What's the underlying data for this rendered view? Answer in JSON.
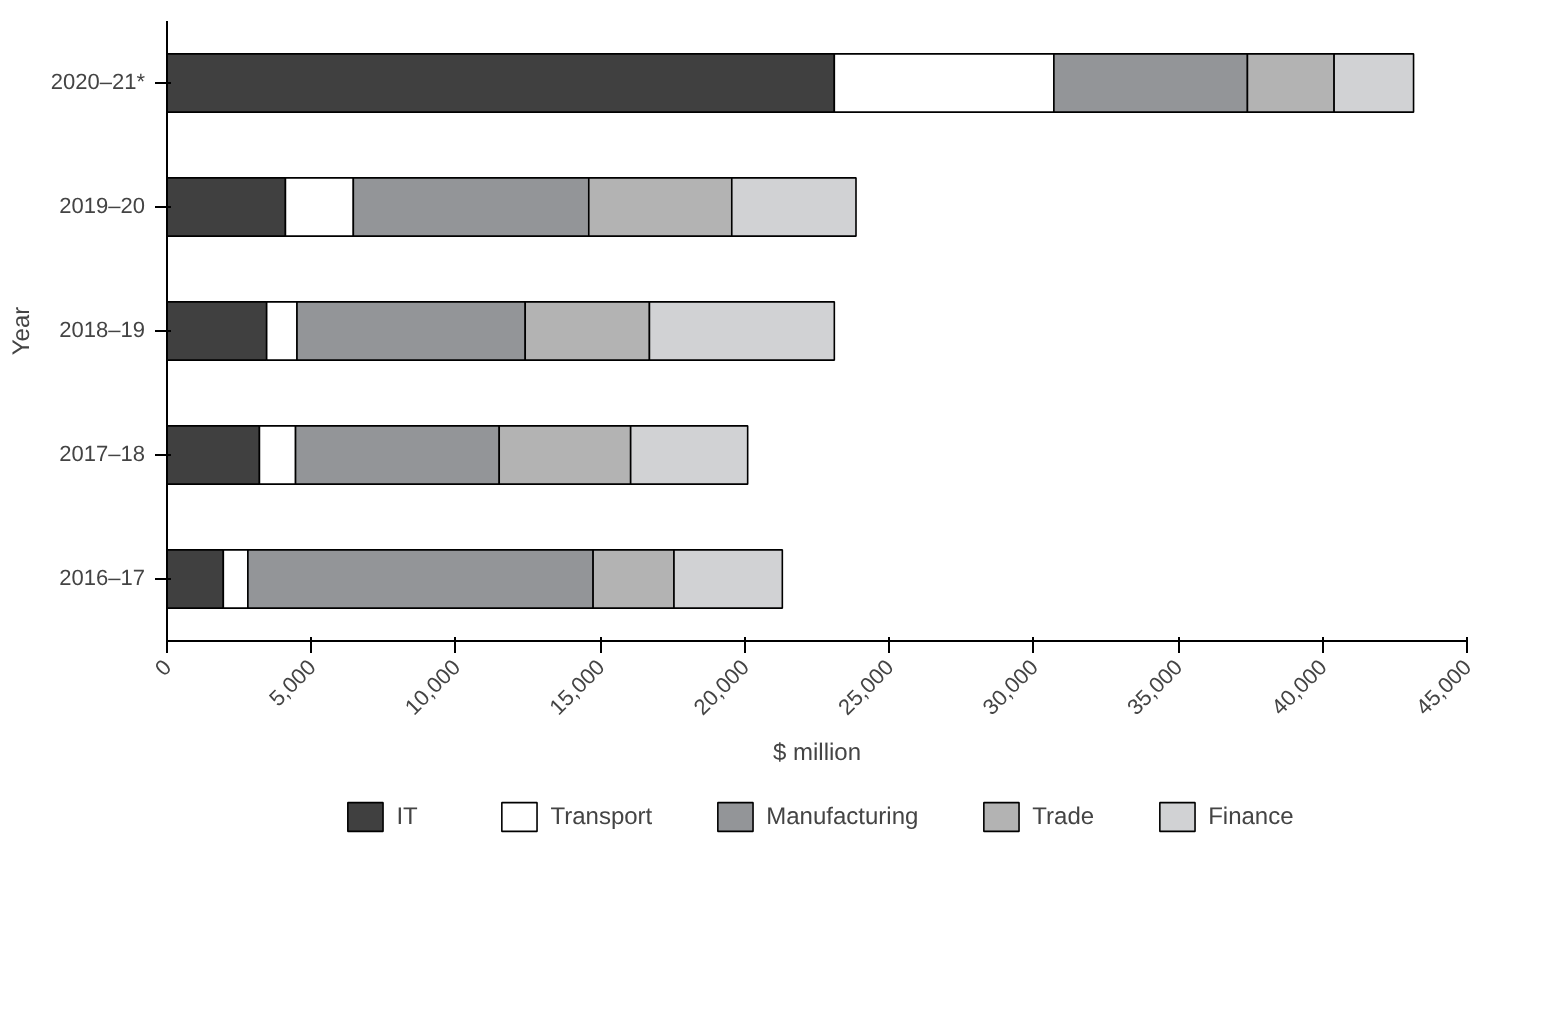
{
  "chart_data": {
    "type": "bar",
    "orientation": "horizontal",
    "stacked": true,
    "xlabel": "$ million",
    "ylabel": "Year",
    "categories": [
      "2020–21*",
      "2019–20",
      "2018–19",
      "2017–18",
      "2016–17"
    ],
    "series": [
      {
        "name": "IT",
        "color": "#404040",
        "values": [
          23100,
          4100,
          3450,
          3200,
          1950
        ]
      },
      {
        "name": "Transport",
        "color": "#ffffff",
        "values": [
          7600,
          2350,
          1050,
          1250,
          850
        ]
      },
      {
        "name": "Manufacturing",
        "color": "#939598",
        "values": [
          6700,
          8150,
          7900,
          7050,
          11950
        ]
      },
      {
        "name": "Trade",
        "color": "#b3b3b3",
        "values": [
          3000,
          4950,
          4300,
          4550,
          2800
        ]
      },
      {
        "name": "Finance",
        "color": "#d1d2d4",
        "values": [
          2750,
          4300,
          6400,
          4050,
          3750
        ]
      }
    ],
    "xlim": [
      0,
      45000
    ],
    "xticks": [
      0,
      {
        "value": 5000,
        "label": "5,000"
      },
      {
        "value": 10000,
        "label": "10,000"
      },
      {
        "value": 15000,
        "label": "15,000"
      },
      {
        "value": 20000,
        "label": "20,000"
      },
      {
        "value": 25000,
        "label": "25,000"
      },
      {
        "value": 30000,
        "label": "30,000"
      },
      {
        "value": 35000,
        "label": "35,000"
      },
      {
        "value": 40000,
        "label": "40,000"
      },
      {
        "value": 45000,
        "label": "45,000"
      }
    ],
    "grid": false,
    "legend": "bottom"
  }
}
